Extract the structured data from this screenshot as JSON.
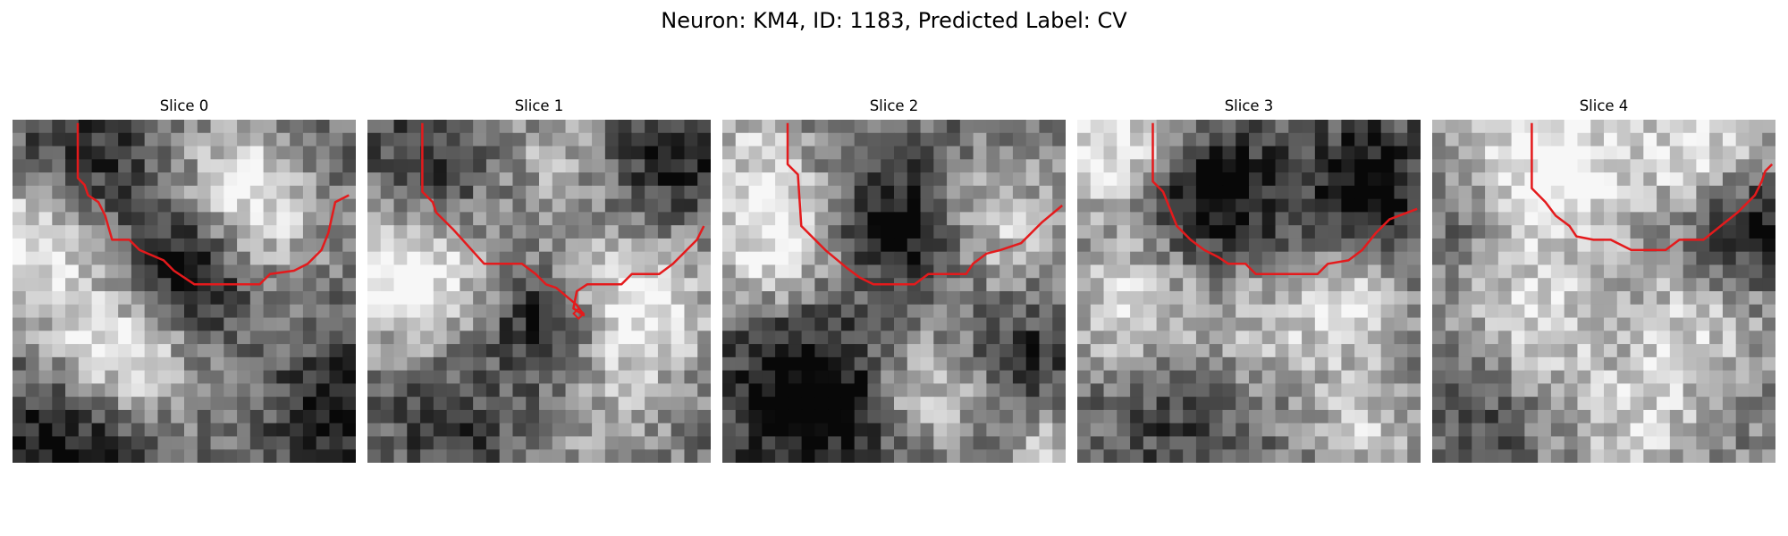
{
  "figure": {
    "title": "Neuron: KM4, ID: 1183, Predicted Label: CV"
  },
  "panels": [
    {
      "title": "Slice 0"
    },
    {
      "title": "Slice 1"
    },
    {
      "title": "Slice 2"
    },
    {
      "title": "Slice 3"
    },
    {
      "title": "Slice 4"
    }
  ],
  "colors": {
    "trace": "#e41a1c",
    "colormap": "gray"
  }
}
